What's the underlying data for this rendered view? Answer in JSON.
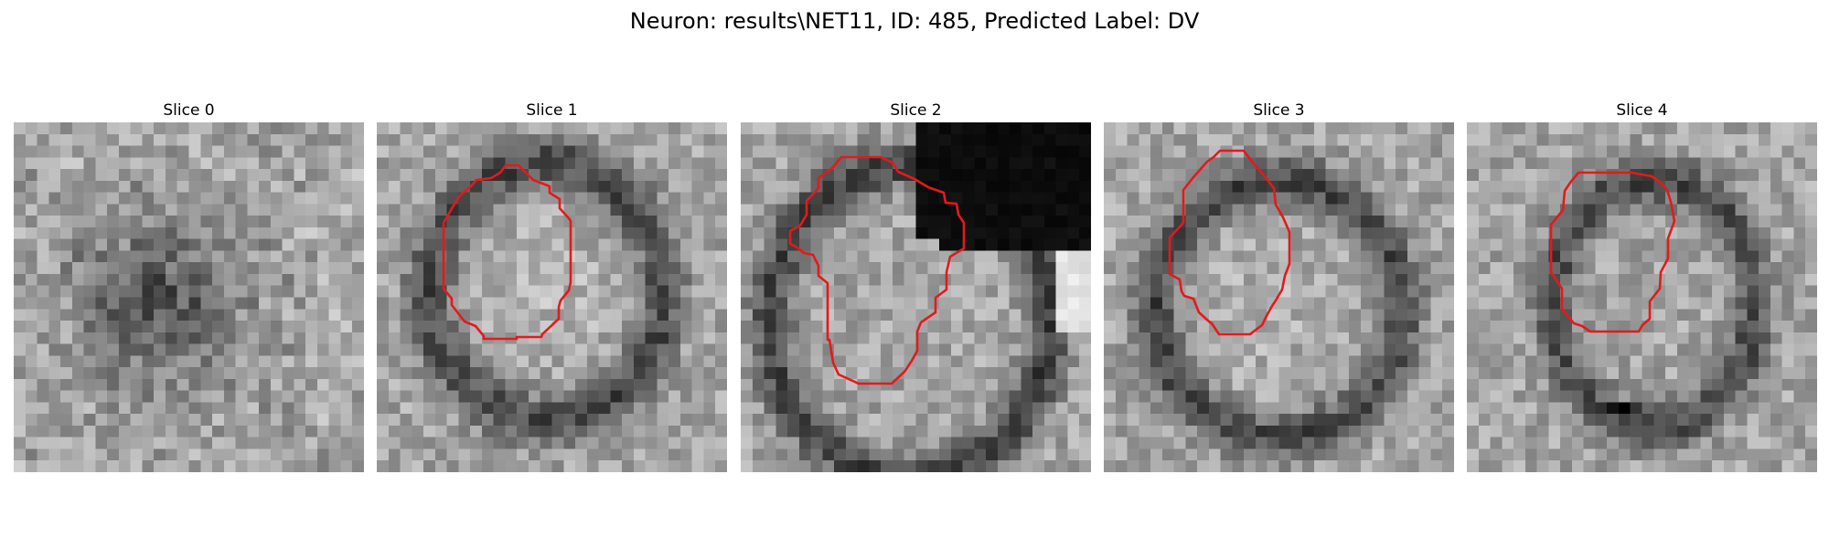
{
  "figure": {
    "title": "Neuron: results\\NET11, ID: 485, Predicted Label: DV",
    "contour_color": "#e31a1c"
  },
  "panels": [
    {
      "title": "Slice 0",
      "has_contour": false
    },
    {
      "title": "Slice 1",
      "has_contour": true
    },
    {
      "title": "Slice 2",
      "has_contour": true
    },
    {
      "title": "Slice 3",
      "has_contour": true
    },
    {
      "title": "Slice 4",
      "has_contour": true
    }
  ]
}
